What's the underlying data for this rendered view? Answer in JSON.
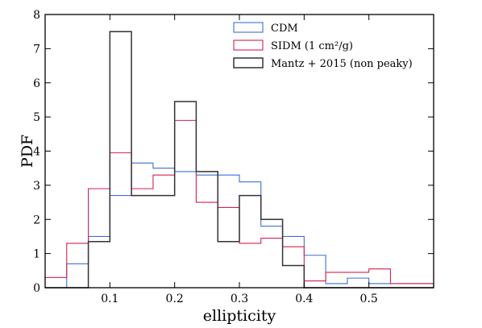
{
  "chart_data": {
    "type": "histogram",
    "xlabel": "ellipticity",
    "ylabel": "PDF",
    "xlim": [
      0.0,
      0.6
    ],
    "ylim": [
      0,
      8
    ],
    "x_ticks": [
      "0.1",
      "0.2",
      "0.3",
      "0.4",
      "0.5"
    ],
    "x_tick_values": [
      0.1,
      0.2,
      0.3,
      0.4,
      0.5
    ],
    "y_ticks": [
      "0",
      "1",
      "2",
      "3",
      "4",
      "5",
      "6",
      "7",
      "8"
    ],
    "y_tick_values": [
      0,
      1,
      2,
      3,
      4,
      5,
      6,
      7,
      8
    ],
    "grid": false,
    "legend_position": "top-right",
    "series": [
      {
        "name": "CDM",
        "color": "#3b6fd6",
        "bin_edges": [
          0.0,
          0.0333,
          0.0667,
          0.1,
          0.1333,
          0.1667,
          0.2,
          0.2333,
          0.2667,
          0.3,
          0.3333,
          0.3667,
          0.4,
          0.4333,
          0.4667,
          0.5,
          0.5333,
          0.5667,
          0.6
        ],
        "values": [
          0.0,
          0.7,
          1.5,
          2.7,
          3.65,
          3.5,
          3.4,
          3.3,
          3.3,
          3.1,
          1.8,
          1.5,
          0.95,
          0.12,
          0.28,
          0.12,
          0.12,
          0.12
        ]
      },
      {
        "name": "SIDM (1 cm²/g)",
        "color": "#d6204e",
        "bin_edges": [
          0.0,
          0.0333,
          0.0667,
          0.1,
          0.1333,
          0.1667,
          0.2,
          0.2333,
          0.2667,
          0.3,
          0.3333,
          0.3667,
          0.4,
          0.4333,
          0.4667,
          0.5,
          0.5333,
          0.5667,
          0.6
        ],
        "values": [
          0.3,
          1.3,
          2.9,
          3.95,
          2.9,
          3.3,
          4.9,
          2.5,
          2.35,
          1.3,
          1.45,
          1.2,
          0.2,
          0.45,
          0.45,
          0.55,
          0.12,
          0.12
        ]
      },
      {
        "name": "Mantz + 2015 (non peaky)",
        "color": "#333333",
        "bin_edges": [
          0.0,
          0.0333,
          0.0667,
          0.1,
          0.1333,
          0.1667,
          0.2,
          0.2333,
          0.2667,
          0.3,
          0.3333,
          0.3667,
          0.4,
          0.4333,
          0.4667,
          0.5,
          0.5333,
          0.5667,
          0.6
        ],
        "values": [
          0.0,
          0.0,
          1.35,
          7.5,
          2.7,
          2.7,
          5.45,
          3.4,
          1.35,
          2.7,
          2.0,
          0.65,
          0.0,
          0.0,
          0.0,
          0.0,
          0.0,
          0.0
        ]
      }
    ]
  }
}
